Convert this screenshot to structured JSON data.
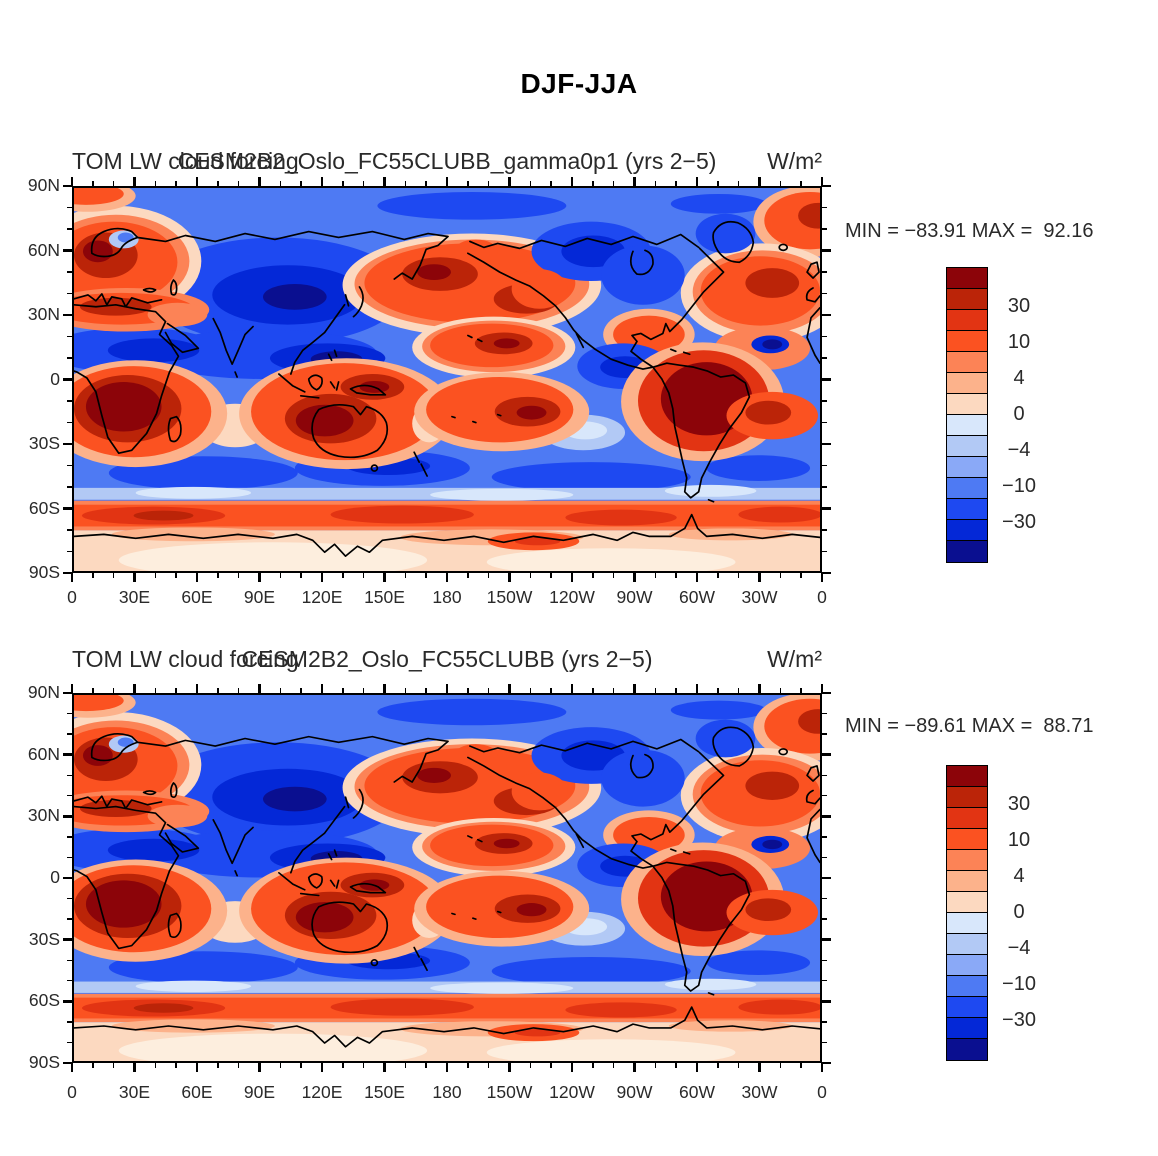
{
  "figure": {
    "title": "DJF-JJA"
  },
  "panels": [
    {
      "title_left": "TOM LW cloud forcing",
      "title_center": "CESM2B2_Oslo_FC55CLUBB_gamma0p1 (yrs 2−5)",
      "title_right": "W/m²",
      "stats": "MIN = −83.91 MAX =  92.16"
    },
    {
      "title_left": "TOM LW cloud forcing",
      "title_center": "CESM2B2_Oslo_FC55CLUBB (yrs 2−5)",
      "title_right": "W/m²",
      "stats": "MIN = −89.61 MAX =  88.71"
    }
  ],
  "axes": {
    "lon_ticks": [
      "0",
      "30E",
      "60E",
      "90E",
      "120E",
      "150E",
      "180",
      "150W",
      "120W",
      "90W",
      "60W",
      "30W",
      "0"
    ],
    "lat_ticks": [
      "90N",
      "60N",
      "30N",
      "0",
      "30S",
      "60S",
      "90S"
    ]
  },
  "colorbar": {
    "tick_labels": [
      "30",
      "10",
      "4",
      "0",
      "−4",
      "−10",
      "−30"
    ],
    "levels": [
      30,
      20,
      10,
      6,
      4,
      2,
      0,
      -2,
      -4,
      -6,
      -10,
      -20,
      -30
    ],
    "colors_top_to_bottom": [
      "#8c0409",
      "#bb2408",
      "#e23413",
      "#fb5221",
      "#fc8356",
      "#fcb28b",
      "#fcd9c0",
      "#d8e7fb",
      "#b2c9f5",
      "#8aa9f7",
      "#4e7af3",
      "#1e49f1",
      "#0428d7",
      "#0a0f90"
    ]
  },
  "chart_data": [
    {
      "type": "heatmap",
      "subtype": "filled-contour global lat-lon map",
      "panel": "top",
      "variable": "TOM LW cloud forcing",
      "experiment": "CESM2B2_Oslo_FC55CLUBB_gamma0p1 (yrs 2−5)",
      "season_difference": "DJF-JJA",
      "units": "W/m²",
      "min": -83.91,
      "max": 92.16,
      "lon_ticks": [
        "0",
        "30E",
        "60E",
        "90E",
        "120E",
        "150E",
        "180",
        "150W",
        "120W",
        "90W",
        "60W",
        "30W",
        "0"
      ],
      "lat_ticks": [
        "90N",
        "60N",
        "30N",
        "0",
        "30S",
        "60S",
        "90S"
      ],
      "contour_levels": [
        -30,
        -20,
        -10,
        -6,
        -4,
        -2,
        0,
        2,
        4,
        6,
        10,
        20,
        30
      ],
      "colorbar_labels": [
        "30",
        "10",
        "4",
        "0",
        "−4",
        "−10",
        "−30"
      ],
      "palette_top_to_bottom": [
        "#8c0409",
        "#bb2408",
        "#e23413",
        "#fb5221",
        "#fc8356",
        "#fcb28b",
        "#fcd9c0",
        "#d8e7fb",
        "#b2c9f5",
        "#8aa9f7",
        "#4e7af3",
        "#1e49f1",
        "#0428d7",
        "#0a0f90"
      ],
      "pattern_summary": "Positive (red) over Europe/N-Africa, North Pacific, North Atlantic, central tropical Pacific, southern Africa, Australia/Maritime Continent, South America, 55-70S circumpolar band; negative (blue) over Siberia/central Asia, Canada, 0-20N Africa-Indian Ocean band, east Pacific, 30-55S band; pale cream over Antarctica interior."
    },
    {
      "type": "heatmap",
      "subtype": "filled-contour global lat-lon map",
      "panel": "bottom",
      "variable": "TOM LW cloud forcing",
      "experiment": "CESM2B2_Oslo_FC55CLUBB (yrs 2−5)",
      "season_difference": "DJF-JJA",
      "units": "W/m²",
      "min": -89.61,
      "max": 88.71,
      "lon_ticks": [
        "0",
        "30E",
        "60E",
        "90E",
        "120E",
        "150E",
        "180",
        "150W",
        "120W",
        "90W",
        "60W",
        "30W",
        "0"
      ],
      "lat_ticks": [
        "90N",
        "60N",
        "30N",
        "0",
        "30S",
        "60S",
        "90S"
      ],
      "contour_levels": [
        -30,
        -20,
        -10,
        -6,
        -4,
        -2,
        0,
        2,
        4,
        6,
        10,
        20,
        30
      ],
      "colorbar_labels": [
        "30",
        "10",
        "4",
        "0",
        "−4",
        "−10",
        "−30"
      ],
      "palette_top_to_bottom": [
        "#8c0409",
        "#bb2408",
        "#e23413",
        "#fb5221",
        "#fc8356",
        "#fcb28b",
        "#fcd9c0",
        "#d8e7fb",
        "#b2c9f5",
        "#8aa9f7",
        "#4e7af3",
        "#1e49f1",
        "#0428d7",
        "#0a0f90"
      ],
      "pattern_summary": "Nearly identical spatial pattern to top panel with slightly stronger extremes."
    }
  ]
}
